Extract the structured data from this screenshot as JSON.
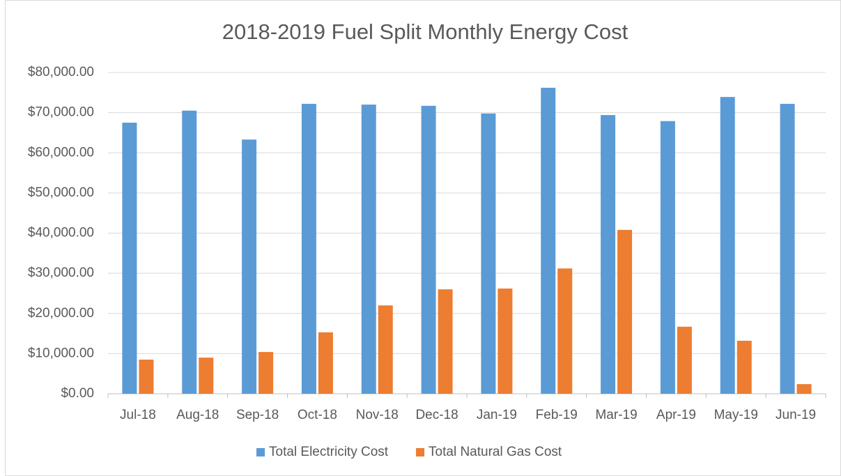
{
  "chart_data": {
    "type": "bar",
    "title": "2018-2019 Fuel Split Monthly Energy Cost",
    "categories": [
      "Jul-18",
      "Aug-18",
      "Sep-18",
      "Oct-18",
      "Nov-18",
      "Dec-18",
      "Jan-19",
      "Feb-19",
      "Mar-19",
      "Apr-19",
      "May-19",
      "Jun-19"
    ],
    "series": [
      {
        "name": "Total Electricity Cost",
        "color": "#5b9bd5",
        "values": [
          67500,
          70500,
          63300,
          72200,
          72000,
          71700,
          69800,
          76200,
          69400,
          67900,
          73900,
          72200
        ]
      },
      {
        "name": "Total Natural Gas Cost",
        "color": "#ed7d31",
        "values": [
          8500,
          9000,
          10400,
          15300,
          22000,
          26000,
          26200,
          31200,
          40800,
          16700,
          13200,
          2400
        ]
      }
    ],
    "ylim": [
      0,
      80000
    ],
    "yticks": [
      {
        "value": 0,
        "label": "$0.00"
      },
      {
        "value": 10000,
        "label": "$10,000.00"
      },
      {
        "value": 20000,
        "label": "$20,000.00"
      },
      {
        "value": 30000,
        "label": "$30,000.00"
      },
      {
        "value": 40000,
        "label": "$40,000.00"
      },
      {
        "value": 50000,
        "label": "$50,000.00"
      },
      {
        "value": 60000,
        "label": "$60,000.00"
      },
      {
        "value": 70000,
        "label": "$70,000.00"
      },
      {
        "value": 80000,
        "label": "$80,000.00"
      }
    ],
    "grid": true,
    "legend": "bottom"
  }
}
